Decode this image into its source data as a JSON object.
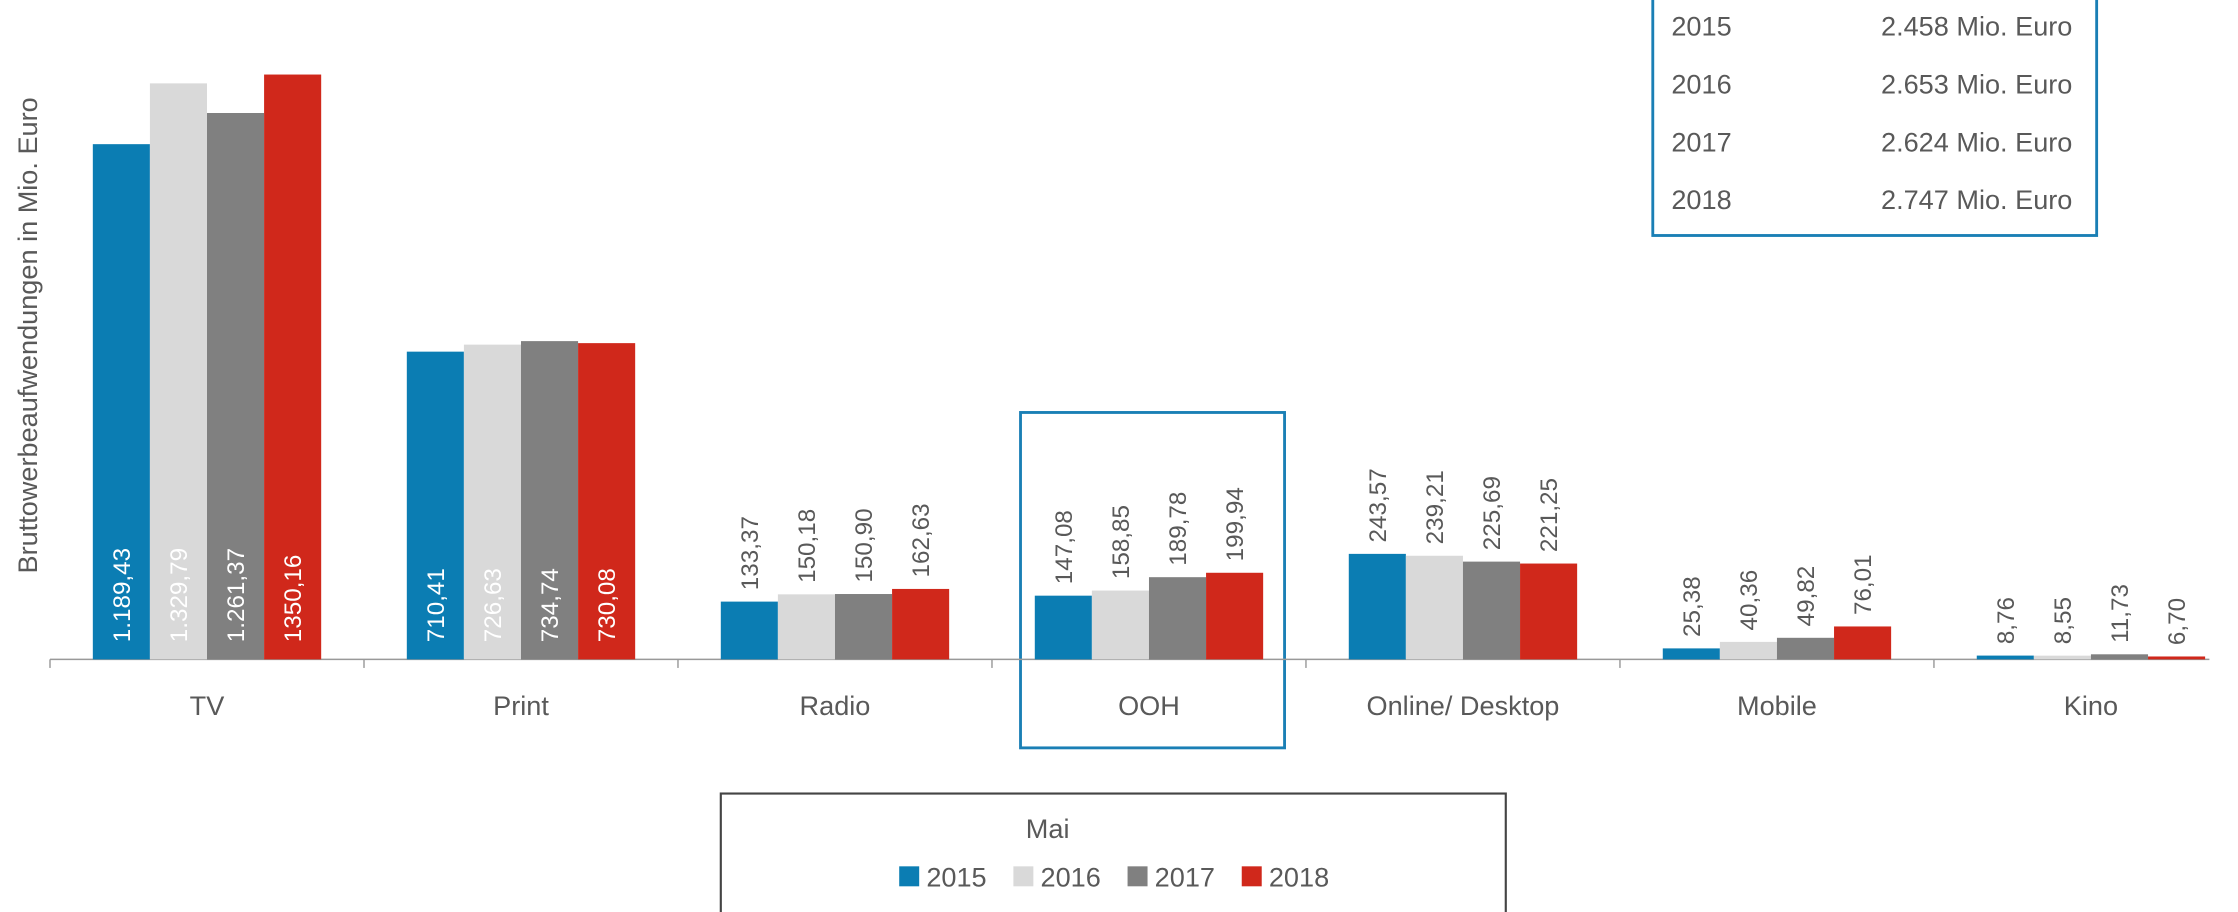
{
  "chart_data": {
    "type": "bar",
    "y_label": "Bruttowerbeaufwendungen in Mio. Euro",
    "categories": [
      "TV",
      "Print",
      "Radio",
      "OOH",
      "Online/ Desktop",
      "Mobile",
      "Kino"
    ],
    "legend_title": "Mai",
    "series": [
      {
        "name": "2015",
        "color": "#0b7db3",
        "values": [
          1189.43,
          710.41,
          133.37,
          147.08,
          243.57,
          25.38,
          8.76
        ],
        "value_labels": [
          "1.189,43",
          "710,41",
          "133,37",
          "147,08",
          "243,57",
          "25,38",
          "8,76"
        ]
      },
      {
        "name": "2016",
        "color": "#d9d9d9",
        "values": [
          1329.79,
          726.63,
          150.18,
          158.85,
          239.21,
          40.36,
          8.55
        ],
        "value_labels": [
          "1.329,79",
          "726,63",
          "150,18",
          "158,85",
          "239,21",
          "40,36",
          "8,55"
        ]
      },
      {
        "name": "2017",
        "color": "#808080",
        "values": [
          1261.37,
          734.74,
          150.9,
          189.78,
          225.69,
          49.82,
          11.73
        ],
        "value_labels": [
          "1.261,37",
          "734,74",
          "150,90",
          "189,78",
          "225,69",
          "49,82",
          "11,73"
        ]
      },
      {
        "name": "2018",
        "color": "#d0281b",
        "values": [
          1350.16,
          730.08,
          162.63,
          199.94,
          221.25,
          76.01,
          6.7
        ],
        "value_labels": [
          "1350,16",
          "730,08",
          "162,63",
          "199,94",
          "221,25",
          "76,01",
          "6,70"
        ]
      }
    ]
  },
  "info_box": {
    "rows": [
      {
        "year": "2015",
        "total": "2.458 Mio. Euro"
      },
      {
        "year": "2016",
        "total": "2.653 Mio. Euro"
      },
      {
        "year": "2017",
        "total": "2.624 Mio. Euro"
      },
      {
        "year": "2018",
        "total": "2.747 Mio. Euro"
      }
    ]
  }
}
